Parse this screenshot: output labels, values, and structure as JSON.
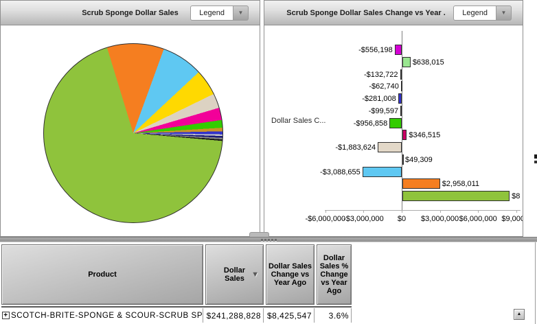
{
  "icons": {
    "legend_dropdown": "▼",
    "sort_desc": "▼",
    "row_expand": "+",
    "scroll_up": "▲"
  },
  "left_panel": {
    "title": "Scrub Sponge Dollar Sales",
    "legend_label": "Legend"
  },
  "right_panel": {
    "title": "Scrub Sponge Dollar Sales Change vs Year .",
    "legend_label": "Legend"
  },
  "chart_data": [
    {
      "type": "pie",
      "title": "Scrub Sponge Dollar Sales",
      "legend": "collapsed (Legend dropdown)",
      "start_angle_deg": -17,
      "slices": [
        {
          "name": "orange",
          "color": "#F57E20",
          "degrees": 37,
          "percent": 10.3
        },
        {
          "name": "sky-blue",
          "color": "#5FC8F2",
          "degrees": 27,
          "percent": 7.5
        },
        {
          "name": "yellow",
          "color": "#FFD901",
          "degrees": 17,
          "percent": 4.7
        },
        {
          "name": "tan",
          "color": "#DCD2C2",
          "degrees": 9.5,
          "percent": 2.6
        },
        {
          "name": "magenta",
          "color": "#F20099",
          "degrees": 8,
          "percent": 2.2
        },
        {
          "name": "green",
          "color": "#33CC00",
          "degrees": 5,
          "percent": 1.4
        },
        {
          "name": "goldenrod",
          "color": "#CB9327",
          "degrees": 2.3,
          "percent": 0.6
        },
        {
          "name": "blue",
          "color": "#3333CC",
          "degrees": 2,
          "percent": 0.6
        },
        {
          "name": "silver",
          "color": "#C8C8C8",
          "degrees": 1,
          "percent": 0.3
        },
        {
          "name": "navy",
          "color": "#1A1A7A",
          "degrees": 1.2,
          "percent": 0.3
        },
        {
          "name": "gray",
          "color": "#8A8A8A",
          "degrees": 1,
          "percent": 0.3
        },
        {
          "name": "black",
          "color": "#1A1A1A",
          "degrees": 1,
          "percent": 0.3
        },
        {
          "name": "chartreuse",
          "color": "#8FC33C",
          "degrees": 248,
          "percent": 68.9
        }
      ]
    },
    {
      "type": "bar",
      "orientation": "horizontal",
      "title": "Scrub Sponge Dollar Sales Change vs Year .",
      "ylabel": "Dollar Sales C...",
      "xlim": [
        -7300000,
        9500000
      ],
      "x_tick_labels": [
        "-$6,000,000",
        "-$3,000,000",
        "$0",
        "$3,000,000",
        "$6,000,000",
        "$9,000,0"
      ],
      "x_tick_values": [
        -6000000,
        -3000000,
        0,
        3000000,
        6000000,
        9000000
      ],
      "grid": false,
      "bars": [
        {
          "value": -556198,
          "label": "-$556,198",
          "color": "#D402D4"
        },
        {
          "value": 638015,
          "label": "$638,015",
          "color": "#99E690"
        },
        {
          "value": -132722,
          "label": "-$132,722",
          "color": "#C6C6C6"
        },
        {
          "value": -62740,
          "label": "-$62,740",
          "color": "#BBBBBB"
        },
        {
          "value": -281008,
          "label": "-$281,008",
          "color": "#3333CC"
        },
        {
          "value": -99597,
          "label": "-$99,597",
          "color": "#333333"
        },
        {
          "value": -956858,
          "label": "-$956,858",
          "color": "#33CC00"
        },
        {
          "value": 346515,
          "label": "$346,515",
          "color": "#CC0066"
        },
        {
          "value": -1883624,
          "label": "-$1,883,624",
          "color": "#E3D8C8"
        },
        {
          "value": 49309,
          "label": "$49,309",
          "color": "#888888"
        },
        {
          "value": -3088655,
          "label": "-$3,088,655",
          "color": "#5FC8F2"
        },
        {
          "value": 2958011,
          "label": "$2,958,011",
          "color": "#F57E20"
        },
        {
          "value": 8425547,
          "label": "$8",
          "color": "#8FC33C"
        }
      ]
    }
  ],
  "table": {
    "columns": [
      {
        "label": "Product"
      },
      {
        "label": "Dollar Sales",
        "sorted": "desc"
      },
      {
        "label": "Dollar Sales Change vs Year Ago"
      },
      {
        "label": "Dollar Sales % Change vs Year Ago"
      }
    ],
    "rows": [
      {
        "product": "SCOTCH-BRITE-SPONGE & SCOUR-SCRUB SPONGE",
        "dollar_sales": "$241,288,828",
        "change_vs_year_ago": "$8,425,547",
        "pct_change_vs_year_ago": "3.6%"
      }
    ]
  }
}
